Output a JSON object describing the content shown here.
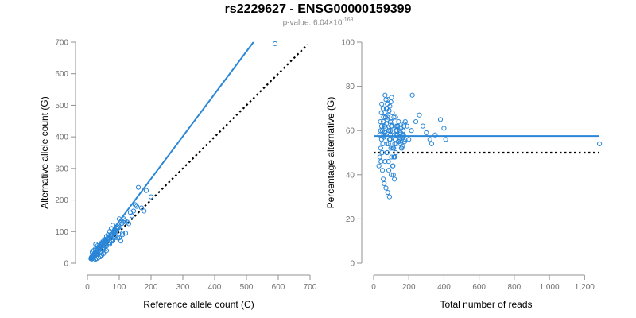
{
  "title": "rs2229627 - ENSG00000159399",
  "subtitle": {
    "prefix": "p-value: 6.04×10",
    "exponent": "-168"
  },
  "colors": {
    "point": "#2a86d6",
    "fit": "#2a86d6",
    "reference": "#000000",
    "axis": "#909090",
    "tick_label": "#707070"
  },
  "chart_data": [
    {
      "type": "scatter",
      "xlabel": "Reference allele count (C)",
      "ylabel": "Alternative allele count (G)",
      "xlim": [
        0,
        700
      ],
      "ylim": [
        0,
        700
      ],
      "xticks": [
        0,
        100,
        200,
        300,
        400,
        500,
        600,
        700
      ],
      "xtick_labels": [
        "0",
        "100",
        "200",
        "300",
        "400",
        "500",
        "600",
        "700"
      ],
      "yticks": [
        0,
        100,
        200,
        300,
        400,
        500,
        600,
        700
      ],
      "ytick_labels": [
        "0",
        "100",
        "200",
        "300",
        "400",
        "500",
        "600",
        "700"
      ],
      "fit_line": {
        "x": [
          10,
          522
        ],
        "y": [
          12,
          700
        ]
      },
      "reference_line": {
        "x": [
          10,
          692
        ],
        "y": [
          10,
          692
        ]
      },
      "points": {
        "x": [
          590,
          200,
          185,
          160,
          150,
          170,
          145,
          140,
          125,
          130,
          100,
          80,
          95,
          90,
          85,
          100,
          110,
          120,
          105,
          75,
          70,
          65,
          60,
          55,
          50,
          45,
          40,
          35,
          30,
          28,
          25,
          22,
          20,
          18,
          15,
          14,
          12,
          16,
          26,
          32,
          38,
          42,
          48,
          52,
          58,
          62,
          68,
          72,
          78,
          82,
          88,
          92,
          98,
          102,
          108,
          112,
          118,
          60,
          55,
          50,
          45,
          40,
          35,
          30,
          25,
          20,
          65,
          70,
          75,
          80,
          85,
          90,
          48,
          52,
          56,
          44,
          36,
          33,
          27,
          24,
          21,
          19,
          17,
          13,
          11,
          29,
          31,
          37,
          41,
          43,
          47,
          53,
          57,
          63,
          67,
          73,
          77,
          83,
          87,
          93,
          97,
          115,
          135,
          155,
          178,
          60,
          70,
          80,
          95,
          110,
          50,
          40,
          30,
          22,
          18,
          14,
          12,
          15,
          20,
          25,
          35,
          45,
          55,
          65,
          75,
          85
        ],
        "y": [
          695,
          210,
          230,
          240,
          185,
          175,
          165,
          150,
          130,
          125,
          140,
          120,
          115,
          100,
          105,
          80,
          90,
          95,
          70,
          110,
          100,
          90,
          85,
          75,
          70,
          65,
          55,
          50,
          45,
          40,
          35,
          30,
          28,
          25,
          22,
          20,
          18,
          15,
          60,
          55,
          50,
          45,
          60,
          65,
          70,
          75,
          80,
          85,
          95,
          100,
          105,
          110,
          120,
          115,
          125,
          130,
          135,
          40,
          35,
          30,
          25,
          20,
          18,
          15,
          12,
          10,
          60,
          65,
          70,
          75,
          80,
          85,
          45,
          50,
          55,
          35,
          40,
          32,
          28,
          26,
          24,
          22,
          20,
          16,
          14,
          38,
          42,
          48,
          52,
          58,
          62,
          68,
          72,
          78,
          82,
          88,
          92,
          98,
          102,
          108,
          112,
          140,
          160,
          180,
          165,
          55,
          60,
          70,
          80,
          95,
          42,
          36,
          30,
          25,
          20,
          16,
          14,
          35,
          40,
          45,
          50,
          60,
          70,
          80,
          90,
          100
        ]
      }
    },
    {
      "type": "scatter",
      "xlabel": "Total number of reads",
      "ylabel": "Percentage alternative (G)",
      "xlim": [
        0,
        1280
      ],
      "ylim": [
        0,
        100
      ],
      "xticks": [
        0,
        200,
        400,
        600,
        800,
        1000,
        1200
      ],
      "xtick_labels": [
        "0",
        "200",
        "400",
        "600",
        "800",
        "1,000",
        "1,200"
      ],
      "yticks": [
        0,
        20,
        40,
        60,
        80,
        100
      ],
      "ytick_labels": [
        "0",
        "20",
        "40",
        "60",
        "80",
        "100"
      ],
      "fit_line": {
        "x": [
          0,
          1280
        ],
        "y": [
          57.5,
          57.5
        ]
      },
      "reference_line": {
        "x": [
          0,
          1280
        ],
        "y": [
          50,
          50
        ]
      },
      "points": {
        "x": [
          1285,
          410,
          400,
          380,
          350,
          330,
          320,
          300,
          280,
          260,
          240,
          220,
          215,
          200,
          190,
          180,
          170,
          160,
          150,
          145,
          140,
          135,
          130,
          125,
          120,
          115,
          110,
          105,
          100,
          95,
          90,
          85,
          80,
          75,
          70,
          65,
          60,
          55,
          50,
          45,
          40,
          35,
          30,
          42,
          48,
          52,
          58,
          62,
          68,
          72,
          78,
          82,
          88,
          92,
          98,
          102,
          108,
          112,
          118,
          122,
          128,
          132,
          138,
          142,
          148,
          152,
          158,
          162,
          168,
          172,
          178,
          60,
          70,
          80,
          90,
          100,
          110,
          120,
          130,
          50,
          55,
          65,
          75,
          85,
          95,
          105,
          115,
          125,
          40,
          45,
          35,
          38,
          44,
          46,
          54,
          56,
          64,
          66,
          74,
          76,
          84,
          86,
          94,
          96,
          104,
          106,
          114,
          116,
          124,
          126,
          134,
          136,
          144,
          146,
          154,
          156,
          164,
          166,
          174,
          176,
          58,
          62,
          68,
          72,
          78,
          82,
          88,
          92,
          98,
          102
        ],
        "y": [
          54,
          56,
          61,
          65,
          58,
          54,
          56,
          59,
          62,
          67,
          64,
          76,
          60,
          56,
          62,
          64,
          58,
          52,
          56,
          60,
          55,
          58,
          62,
          66,
          54,
          48,
          52,
          58,
          62,
          64,
          56,
          60,
          66,
          70,
          74,
          76,
          68,
          64,
          60,
          56,
          52,
          48,
          44,
          46,
          50,
          54,
          58,
          62,
          66,
          70,
          72,
          74,
          60,
          56,
          52,
          48,
          44,
          40,
          38,
          56,
          58,
          60,
          62,
          64,
          56,
          54,
          52,
          58,
          60,
          62,
          56,
          36,
          34,
          32,
          30,
          40,
          44,
          48,
          54,
          42,
          38,
          46,
          50,
          54,
          58,
          62,
          66,
          50,
          60,
          62,
          58,
          64,
          68,
          72,
          70,
          66,
          62,
          58,
          54,
          50,
          46,
          42,
          56,
          60,
          64,
          68,
          52,
          48,
          56,
          60,
          58,
          62,
          55,
          57,
          59,
          61,
          53,
          57,
          63,
          55,
          57,
          59,
          61,
          63,
          65,
          67,
          69,
          71,
          73,
          75
        ]
      }
    }
  ]
}
